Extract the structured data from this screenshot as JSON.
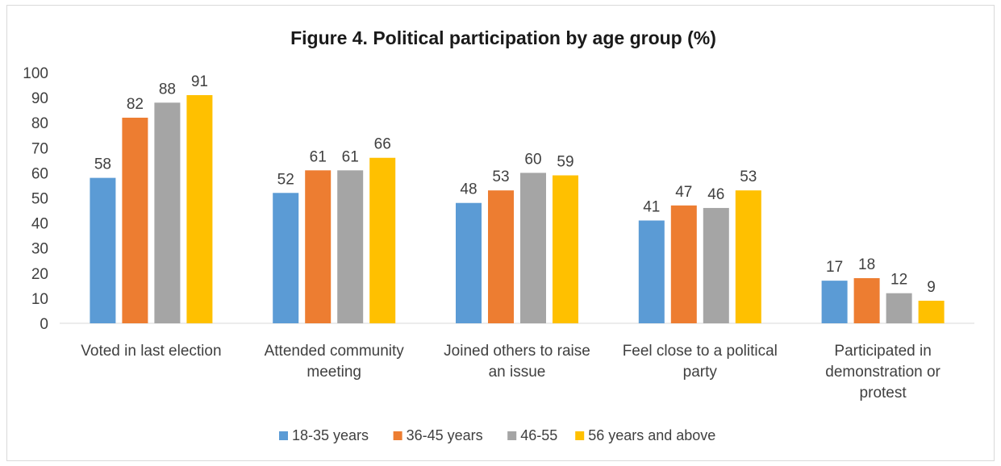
{
  "chart_data": {
    "type": "bar",
    "title": "Figure 4. Political participation by age group (%)",
    "xlabel": "",
    "ylabel": "",
    "ylim": [
      0,
      100
    ],
    "yticks": [
      0,
      10,
      20,
      30,
      40,
      50,
      60,
      70,
      80,
      90,
      100
    ],
    "grid": false,
    "legend_position": "bottom",
    "categories": [
      [
        "Voted in last election"
      ],
      [
        "Attended community",
        "meeting"
      ],
      [
        "Joined others to raise",
        "an issue"
      ],
      [
        "Feel close to a political",
        "party"
      ],
      [
        "Participated in",
        "demonstration or",
        "protest"
      ]
    ],
    "series": [
      {
        "name": "18-35 years",
        "color": "#5b9bd5",
        "values": [
          58,
          52,
          48,
          41,
          17
        ]
      },
      {
        "name": "36-45 years",
        "color": "#ed7d31",
        "values": [
          82,
          61,
          53,
          47,
          18
        ]
      },
      {
        "name": "46-55",
        "color": "#a5a5a5",
        "values": [
          88,
          61,
          60,
          46,
          12
        ]
      },
      {
        "name": "56 years and above",
        "color": "#ffc000",
        "values": [
          91,
          66,
          59,
          53,
          9
        ]
      }
    ]
  }
}
